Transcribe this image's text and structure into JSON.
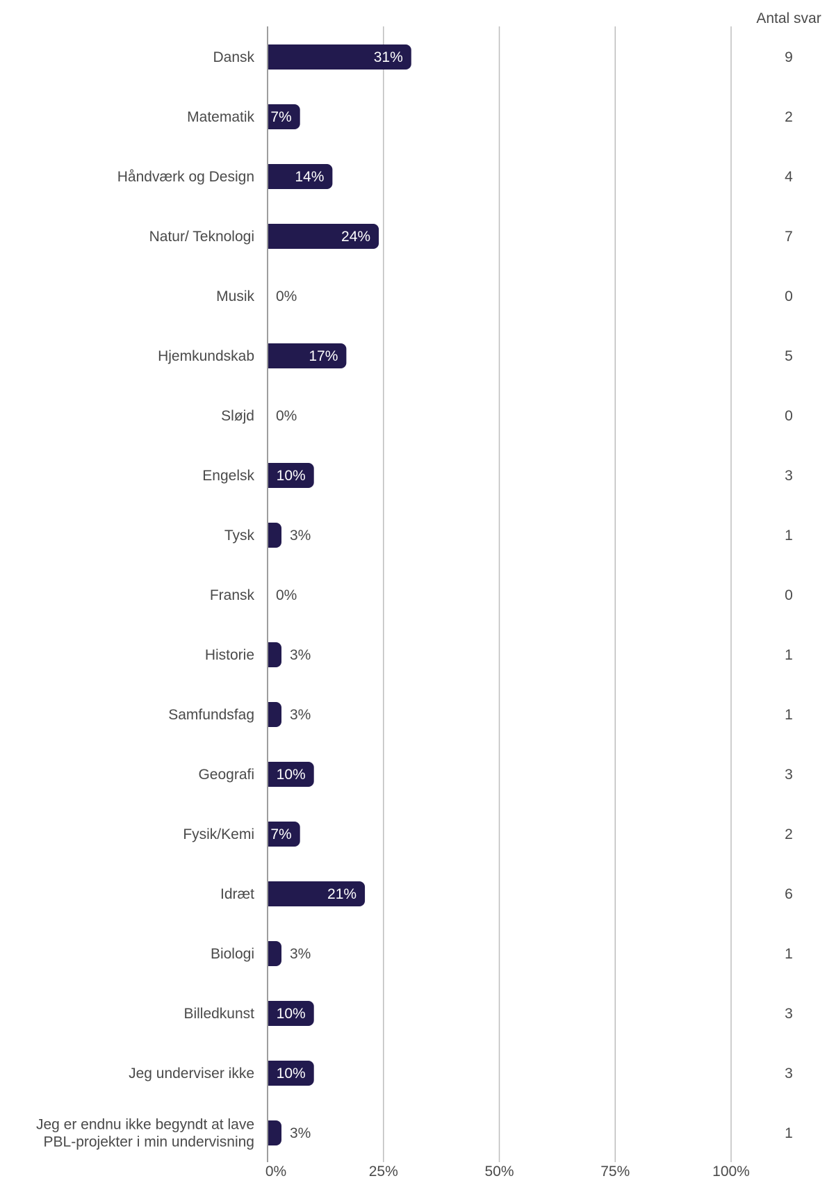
{
  "chart_data": {
    "type": "bar",
    "orientation": "horizontal",
    "categories": [
      "Dansk",
      "Matematik",
      "Håndværk og Design",
      "Natur/ Teknologi",
      "Musik",
      "Hjemkundskab",
      "Sløjd",
      "Engelsk",
      "Tysk",
      "Fransk",
      "Historie",
      "Samfundsfag",
      "Geografi",
      "Fysik/Kemi",
      "Idræt",
      "Biologi",
      "Billedkunst",
      "Jeg underviser ikke",
      "Jeg er endnu ikke begyndt at lave PBL-projekter i min undervisning"
    ],
    "category_lines": [
      [
        "Dansk"
      ],
      [
        "Matematik"
      ],
      [
        "Håndværk og Design"
      ],
      [
        "Natur/ Teknologi"
      ],
      [
        "Musik"
      ],
      [
        "Hjemkundskab"
      ],
      [
        "Sløjd"
      ],
      [
        "Engelsk"
      ],
      [
        "Tysk"
      ],
      [
        "Fransk"
      ],
      [
        "Historie"
      ],
      [
        "Samfundsfag"
      ],
      [
        "Geografi"
      ],
      [
        "Fysik/Kemi"
      ],
      [
        "Idræt"
      ],
      [
        "Biologi"
      ],
      [
        "Billedkunst"
      ],
      [
        "Jeg underviser ikke"
      ],
      [
        "Jeg er endnu ikke begyndt at lave",
        "PBL-projekter i min undervisning"
      ]
    ],
    "values": [
      31,
      7,
      14,
      24,
      0,
      17,
      0,
      10,
      3,
      0,
      3,
      3,
      10,
      7,
      21,
      3,
      10,
      10,
      3
    ],
    "value_labels": [
      "31%",
      "7%",
      "14%",
      "24%",
      "0%",
      "17%",
      "0%",
      "10%",
      "3%",
      "0%",
      "3%",
      "3%",
      "10%",
      "7%",
      "21%",
      "3%",
      "10%",
      "10%",
      "3%"
    ],
    "counts": [
      "9",
      "2",
      "4",
      "7",
      "0",
      "5",
      "0",
      "3",
      "1",
      "0",
      "1",
      "1",
      "3",
      "2",
      "6",
      "1",
      "3",
      "3",
      "1"
    ],
    "counts_header": "Antal svar",
    "x_ticks": [
      0,
      25,
      50,
      75,
      100
    ],
    "x_tick_labels": [
      "0%",
      "25%",
      "50%",
      "75%",
      "100%"
    ],
    "xlim": [
      0,
      100
    ],
    "grid": true,
    "bar_color": "#221a4e",
    "title": "",
    "xlabel": "",
    "ylabel": ""
  }
}
